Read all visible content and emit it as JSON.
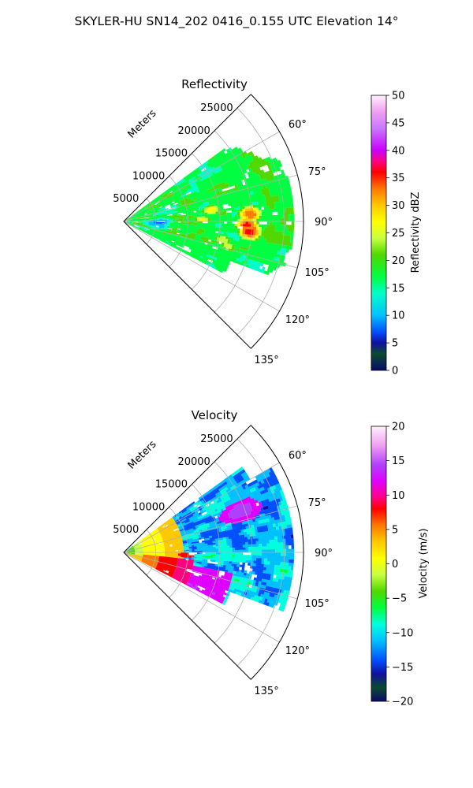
{
  "figure": {
    "suptitle": "SKYLER-HU  SN14_202  0416_0.155 UTC Elevation 14°"
  },
  "chart_data": [
    {
      "type": "heatmap",
      "projection": "polar-sector",
      "title": "Reflectivity",
      "range_label": "Meters",
      "range_ticks": [
        "5000",
        "10000",
        "15000",
        "20000",
        "25000"
      ],
      "range_tick_values": [
        5000,
        10000,
        15000,
        20000,
        25000
      ],
      "range_max": 28000,
      "azimuth_ticks": [
        "60°",
        "75°",
        "90°",
        "105°",
        "120°",
        "135°"
      ],
      "azimuth_tick_values": [
        60,
        75,
        90,
        105,
        120,
        135
      ],
      "azimuth_range": [
        45,
        135
      ],
      "data_azimuth_range": [
        54,
        117
      ],
      "grid": true,
      "colorbar": {
        "label": "Reflectivity dBZ",
        "range": [
          0,
          50
        ],
        "ticks": [
          "0",
          "5",
          "10",
          "15",
          "20",
          "25",
          "30",
          "35",
          "40",
          "45",
          "50"
        ],
        "tick_values": [
          0,
          5,
          10,
          15,
          20,
          25,
          30,
          35,
          40,
          45,
          50
        ]
      },
      "features": [
        {
          "az": 91,
          "range": 19000,
          "value": 37
        },
        {
          "az": 94,
          "range": 19500,
          "value": 38
        },
        {
          "az": 86,
          "range": 19500,
          "value": 36
        },
        {
          "az": 82,
          "range": 13500,
          "value": 30
        },
        {
          "az": 88,
          "range": 12000,
          "value": 28
        },
        {
          "az": 100,
          "range": 15500,
          "value": 27
        },
        {
          "az": 103,
          "range": 16500,
          "value": 26
        }
      ]
    },
    {
      "type": "heatmap",
      "projection": "polar-sector",
      "title": "Velocity",
      "range_label": "Meters",
      "range_ticks": [
        "5000",
        "10000",
        "15000",
        "20000",
        "25000"
      ],
      "range_tick_values": [
        5000,
        10000,
        15000,
        20000,
        25000
      ],
      "range_max": 28000,
      "azimuth_ticks": [
        "60°",
        "75°",
        "90°",
        "105°",
        "120°",
        "135°"
      ],
      "azimuth_tick_values": [
        60,
        75,
        90,
        105,
        120,
        135
      ],
      "azimuth_range": [
        45,
        135
      ],
      "data_azimuth_range": [
        54,
        117
      ],
      "grid": true,
      "colorbar": {
        "label": "Velocity (m/s)",
        "range": [
          -20,
          20
        ],
        "ticks": [
          "−20",
          "−15",
          "−10",
          "−5",
          "0",
          "5",
          "10",
          "15",
          "20"
        ],
        "tick_values": [
          -20,
          -15,
          -10,
          -5,
          0,
          5,
          10,
          15,
          20
        ]
      }
    }
  ]
}
